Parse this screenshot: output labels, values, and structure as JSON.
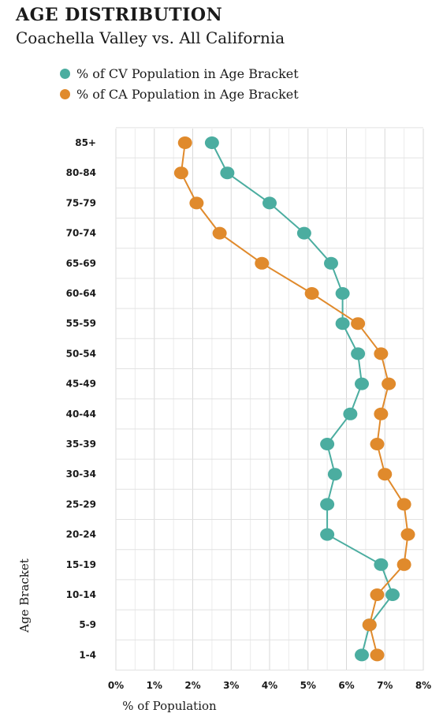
{
  "chart_data": {
    "type": "line",
    "title": "AGE DISTRIBUTION",
    "subtitle": "Coachella Valley vs. All California",
    "xlabel": "% of Population",
    "ylabel": "Age Bracket",
    "xlim": [
      0,
      8
    ],
    "x_ticks": [
      "0%",
      "1%",
      "2%",
      "3%",
      "4%",
      "5%",
      "6%",
      "7%",
      "8%"
    ],
    "categories": [
      "85+",
      "80-84",
      "75-79",
      "70-74",
      "65-69",
      "60-64",
      "55-59",
      "50-54",
      "45-49",
      "40-44",
      "35-39",
      "30-34",
      "25-29",
      "20-24",
      "15-19",
      "10-14",
      "5-9",
      "1-4"
    ],
    "grid": true,
    "legend_position": "top-left",
    "series": [
      {
        "name": "% of CV Population in Age Bracket",
        "color": "#4bada0",
        "values": [
          2.5,
          2.9,
          4.0,
          4.9,
          5.6,
          5.9,
          5.9,
          6.3,
          6.4,
          6.1,
          5.5,
          5.7,
          5.5,
          5.5,
          6.9,
          7.2,
          6.6,
          6.4
        ]
      },
      {
        "name": "% of CA Population in Age Bracket",
        "color": "#e08a2c",
        "values": [
          1.8,
          1.7,
          2.1,
          2.7,
          3.8,
          5.1,
          6.3,
          6.9,
          7.1,
          6.9,
          6.8,
          7.0,
          7.5,
          7.6,
          7.5,
          6.8,
          6.6,
          6.8
        ]
      }
    ]
  }
}
